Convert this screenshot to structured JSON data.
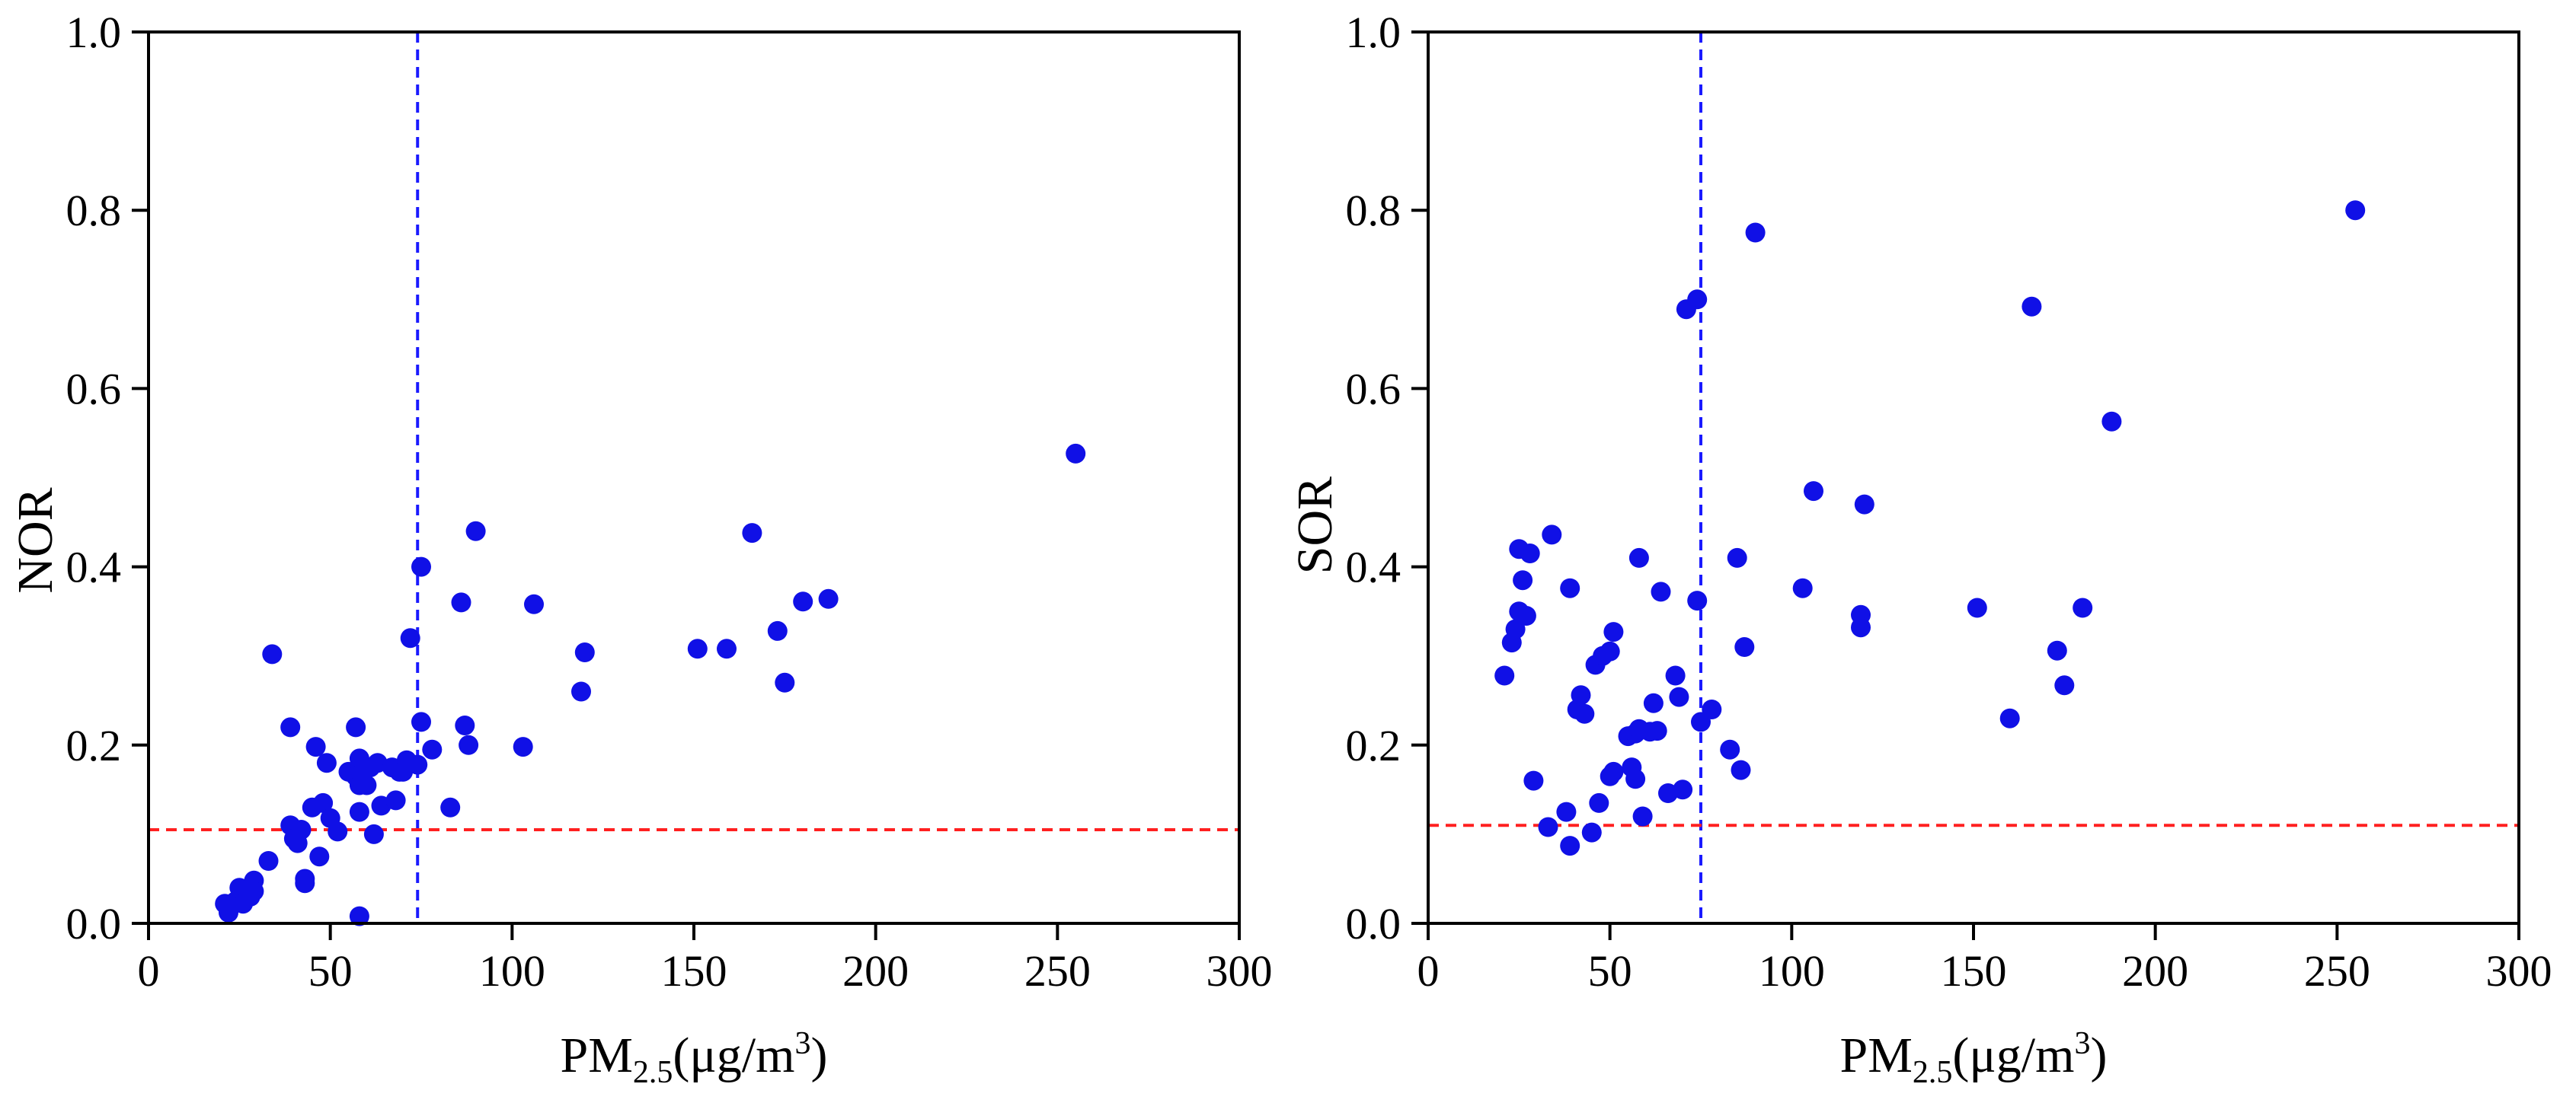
{
  "chart_data": [
    {
      "type": "scatter",
      "panel": "left",
      "xlabel": {
        "main": "PM",
        "sub": "2.5",
        "unit_pre": "(μg/m",
        "sup": "3",
        "unit_post": ")"
      },
      "ylabel": "NOR",
      "xlim": [
        0,
        300
      ],
      "ylim": [
        0,
        1.0
      ],
      "xticks": [
        "0",
        "50",
        "100",
        "150",
        "200",
        "250",
        "300"
      ],
      "yticks": [
        "0.0",
        "0.2",
        "0.4",
        "0.6",
        "0.8",
        "1.0"
      ],
      "point_color": "#1010e6",
      "vline": {
        "x": 74,
        "color": "#1a1aff"
      },
      "hline": {
        "y": 0.105,
        "color": "#ff2020"
      },
      "points": [
        [
          21,
          0.022
        ],
        [
          22,
          0.012
        ],
        [
          24,
          0.025
        ],
        [
          25,
          0.04
        ],
        [
          26,
          0.022
        ],
        [
          28,
          0.03
        ],
        [
          29,
          0.048
        ],
        [
          29,
          0.036
        ],
        [
          33,
          0.07
        ],
        [
          34,
          0.302
        ],
        [
          39,
          0.11
        ],
        [
          39,
          0.22
        ],
        [
          40,
          0.095
        ],
        [
          41,
          0.09
        ],
        [
          42,
          0.105
        ],
        [
          43,
          0.05
        ],
        [
          43,
          0.045
        ],
        [
          45,
          0.13
        ],
        [
          46,
          0.198
        ],
        [
          47,
          0.075
        ],
        [
          48,
          0.135
        ],
        [
          49,
          0.18
        ],
        [
          50,
          0.118
        ],
        [
          52,
          0.103
        ],
        [
          55,
          0.17
        ],
        [
          57,
          0.22
        ],
        [
          57,
          0.165
        ],
        [
          58,
          0.185
        ],
        [
          58,
          0.155
        ],
        [
          58,
          0.125
        ],
        [
          58,
          0.008
        ],
        [
          60,
          0.155
        ],
        [
          61,
          0.175
        ],
        [
          62,
          0.1
        ],
        [
          63,
          0.18
        ],
        [
          64,
          0.132
        ],
        [
          67,
          0.175
        ],
        [
          68,
          0.138
        ],
        [
          69,
          0.17
        ],
        [
          70,
          0.17
        ],
        [
          71,
          0.183
        ],
        [
          72,
          0.32
        ],
        [
          74,
          0.178
        ],
        [
          75,
          0.4
        ],
        [
          75,
          0.226
        ],
        [
          78,
          0.195
        ],
        [
          83,
          0.13
        ],
        [
          86,
          0.36
        ],
        [
          87,
          0.222
        ],
        [
          88,
          0.2
        ],
        [
          90,
          0.44
        ],
        [
          103,
          0.198
        ],
        [
          106,
          0.358
        ],
        [
          119,
          0.26
        ],
        [
          120,
          0.304
        ],
        [
          151,
          0.308
        ],
        [
          159,
          0.308
        ],
        [
          166,
          0.438
        ],
        [
          173,
          0.328
        ],
        [
          175,
          0.27
        ],
        [
          180,
          0.361
        ],
        [
          187,
          0.364
        ],
        [
          255,
          0.527
        ]
      ]
    },
    {
      "type": "scatter",
      "panel": "right",
      "xlabel": {
        "main": "PM",
        "sub": "2.5",
        "unit_pre": "(μg/m",
        "sup": "3",
        "unit_post": ")"
      },
      "ylabel": "SOR",
      "xlim": [
        0,
        300
      ],
      "ylim": [
        0,
        1.0
      ],
      "xticks": [
        "0",
        "50",
        "100",
        "150",
        "200",
        "250",
        "300"
      ],
      "yticks": [
        "0.0",
        "0.2",
        "0.4",
        "0.6",
        "0.8",
        "1.0"
      ],
      "point_color": "#1010e6",
      "vline": {
        "x": 75,
        "color": "#1a1aff"
      },
      "hline": {
        "y": 0.11,
        "color": "#ff2020"
      },
      "points": [
        [
          21,
          0.278
        ],
        [
          23,
          0.315
        ],
        [
          24,
          0.33
        ],
        [
          25,
          0.35
        ],
        [
          25,
          0.42
        ],
        [
          26,
          0.385
        ],
        [
          27,
          0.345
        ],
        [
          28,
          0.415
        ],
        [
          29,
          0.16
        ],
        [
          33,
          0.108
        ],
        [
          34,
          0.436
        ],
        [
          38,
          0.125
        ],
        [
          39,
          0.376
        ],
        [
          39,
          0.087
        ],
        [
          41,
          0.24
        ],
        [
          42,
          0.256
        ],
        [
          43,
          0.235
        ],
        [
          45,
          0.102
        ],
        [
          46,
          0.29
        ],
        [
          47,
          0.135
        ],
        [
          48,
          0.3
        ],
        [
          50,
          0.305
        ],
        [
          50,
          0.165
        ],
        [
          51,
          0.17
        ],
        [
          51,
          0.327
        ],
        [
          55,
          0.21
        ],
        [
          56,
          0.175
        ],
        [
          57,
          0.213
        ],
        [
          57,
          0.162
        ],
        [
          58,
          0.41
        ],
        [
          58,
          0.218
        ],
        [
          59,
          0.12
        ],
        [
          61,
          0.215
        ],
        [
          62,
          0.247
        ],
        [
          63,
          0.216
        ],
        [
          64,
          0.372
        ],
        [
          66,
          0.146
        ],
        [
          68,
          0.278
        ],
        [
          69,
          0.254
        ],
        [
          70,
          0.15
        ],
        [
          71,
          0.689
        ],
        [
          74,
          0.7
        ],
        [
          74,
          0.362
        ],
        [
          75,
          0.226
        ],
        [
          78,
          0.24
        ],
        [
          83,
          0.195
        ],
        [
          85,
          0.41
        ],
        [
          86,
          0.172
        ],
        [
          87,
          0.31
        ],
        [
          90,
          0.775
        ],
        [
          103,
          0.376
        ],
        [
          106,
          0.485
        ],
        [
          119,
          0.332
        ],
        [
          119,
          0.346
        ],
        [
          120,
          0.47
        ],
        [
          151,
          0.354
        ],
        [
          160,
          0.23
        ],
        [
          166,
          0.692
        ],
        [
          173,
          0.306
        ],
        [
          175,
          0.267
        ],
        [
          180,
          0.354
        ],
        [
          188,
          0.563
        ],
        [
          255,
          0.8
        ]
      ]
    }
  ]
}
